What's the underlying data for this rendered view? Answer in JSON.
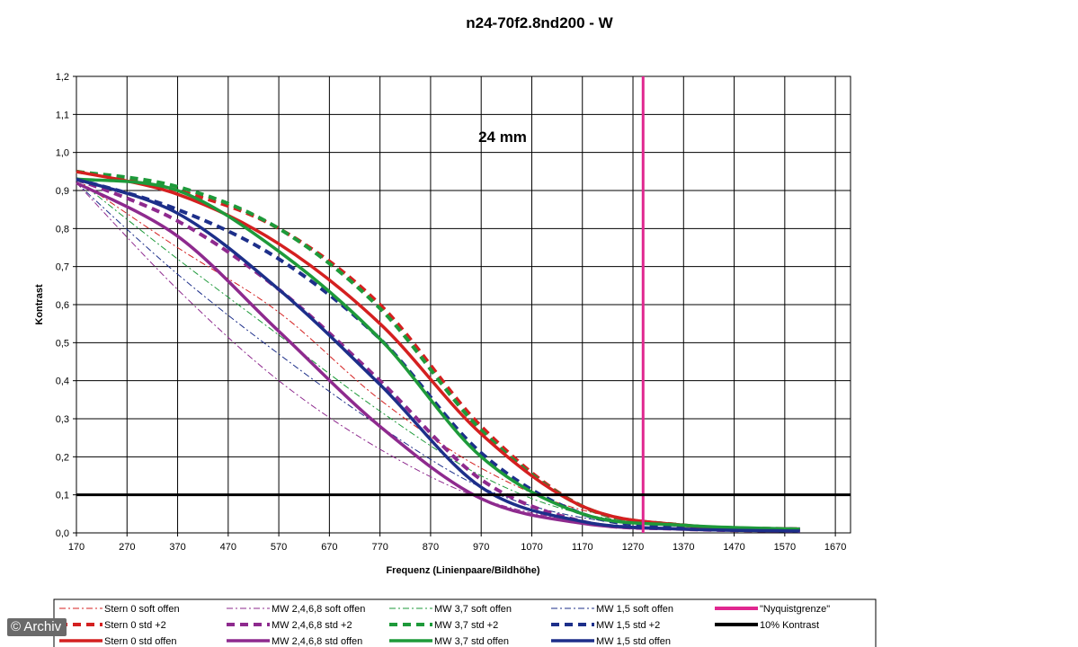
{
  "chart_data": {
    "type": "line",
    "title": "n24-70f2.8nd200 - W",
    "annotation": "24 mm",
    "xlabel": "Frequenz (Linienpaare/Bildhöhe)",
    "ylabel": "Kontrast",
    "xlim": [
      170,
      1700
    ],
    "ylim": [
      0,
      1.2
    ],
    "x_ticks": [
      "170",
      "270",
      "370",
      "470",
      "570",
      "670",
      "770",
      "870",
      "970",
      "1070",
      "1170",
      "1270",
      "1370",
      "1470",
      "1570",
      "1670"
    ],
    "y_ticks": [
      "0,0",
      "0,1",
      "0,2",
      "0,3",
      "0,4",
      "0,5",
      "0,6",
      "0,7",
      "0,8",
      "0,9",
      "1,0",
      "1,1",
      "1,2"
    ],
    "grid": true,
    "legend_position": "bottom",
    "series": [
      {
        "name": "Stern 0 soft offen",
        "color": "#d42020",
        "style": "dashdot-thin",
        "x": [
          170,
          370,
          570,
          770,
          970,
          1170,
          1400,
          1600
        ],
        "y": [
          0.93,
          0.75,
          0.58,
          0.35,
          0.17,
          0.06,
          0.02,
          0.01
        ]
      },
      {
        "name": "MW 2,4,6,8 soft offen",
        "color": "#8e2a8e",
        "style": "dashdot-thin",
        "x": [
          170,
          370,
          570,
          770,
          970,
          1170,
          1400,
          1600
        ],
        "y": [
          0.92,
          0.64,
          0.4,
          0.22,
          0.09,
          0.03,
          0.01,
          0.005
        ]
      },
      {
        "name": "MW 3,7 soft offen",
        "color": "#1e9a3a",
        "style": "dashdot-thin",
        "x": [
          170,
          370,
          570,
          770,
          970,
          1170,
          1400,
          1600
        ],
        "y": [
          0.93,
          0.72,
          0.52,
          0.32,
          0.15,
          0.05,
          0.02,
          0.01
        ]
      },
      {
        "name": "MW 1,5 soft offen",
        "color": "#1d2f8a",
        "style": "dashdot-thin",
        "x": [
          170,
          370,
          570,
          770,
          970,
          1170,
          1400,
          1600
        ],
        "y": [
          0.92,
          0.68,
          0.47,
          0.28,
          0.12,
          0.04,
          0.015,
          0.01
        ]
      },
      {
        "name": "\"Nyquistgrenze\"",
        "color": "#e0278f",
        "style": "vertical",
        "x": [
          1290,
          1290
        ],
        "y": [
          0,
          1.2
        ]
      },
      {
        "name": "Stern 0 std +2",
        "color": "#d42020",
        "style": "dash-thick",
        "x": [
          170,
          370,
          570,
          770,
          970,
          1170,
          1370,
          1600
        ],
        "y": [
          0.95,
          0.9,
          0.8,
          0.6,
          0.28,
          0.07,
          0.02,
          0.01
        ]
      },
      {
        "name": "MW 2,4,6,8 std +2",
        "color": "#8e2a8e",
        "style": "dash-thick",
        "x": [
          170,
          370,
          570,
          770,
          970,
          1170,
          1370,
          1600
        ],
        "y": [
          0.93,
          0.82,
          0.64,
          0.4,
          0.14,
          0.03,
          0.01,
          0.005
        ]
      },
      {
        "name": "MW 3,7 std +2",
        "color": "#1e9a3a",
        "style": "dash-thick",
        "x": [
          170,
          370,
          570,
          770,
          970,
          1170,
          1370,
          1600
        ],
        "y": [
          0.95,
          0.91,
          0.8,
          0.59,
          0.27,
          0.07,
          0.02,
          0.01
        ]
      },
      {
        "name": "MW 1,5 std +2",
        "color": "#1d2f8a",
        "style": "dash-thick",
        "x": [
          170,
          370,
          570,
          770,
          970,
          1170,
          1370,
          1600
        ],
        "y": [
          0.93,
          0.85,
          0.72,
          0.51,
          0.21,
          0.05,
          0.015,
          0.01
        ]
      },
      {
        "name": "10% Kontrast",
        "color": "#000000",
        "style": "horizontal",
        "x": [
          170,
          1700
        ],
        "y": [
          0.1,
          0.1
        ]
      },
      {
        "name": "Stern 0 std offen",
        "color": "#d42020",
        "style": "solid-thick",
        "x": [
          170,
          370,
          570,
          770,
          970,
          1170,
          1370,
          1600
        ],
        "y": [
          0.95,
          0.89,
          0.76,
          0.55,
          0.26,
          0.07,
          0.02,
          0.01
        ]
      },
      {
        "name": "MW 2,4,6,8 std offen",
        "color": "#8e2a8e",
        "style": "solid-thick",
        "x": [
          170,
          370,
          570,
          770,
          970,
          1170,
          1370,
          1600
        ],
        "y": [
          0.92,
          0.78,
          0.53,
          0.28,
          0.09,
          0.025,
          0.01,
          0.005
        ]
      },
      {
        "name": "MW 3,7 std offen",
        "color": "#1e9a3a",
        "style": "solid-thick",
        "x": [
          170,
          370,
          570,
          770,
          970,
          1170,
          1370,
          1600
        ],
        "y": [
          0.93,
          0.9,
          0.74,
          0.51,
          0.2,
          0.05,
          0.02,
          0.01
        ]
      },
      {
        "name": "MW 1,5 std offen",
        "color": "#1d2f8a",
        "style": "solid-thick",
        "x": [
          170,
          370,
          570,
          770,
          970,
          1170,
          1370,
          1600
        ],
        "y": [
          0.93,
          0.84,
          0.64,
          0.39,
          0.12,
          0.03,
          0.01,
          0.005
        ]
      }
    ]
  },
  "watermark": "© Archiv"
}
